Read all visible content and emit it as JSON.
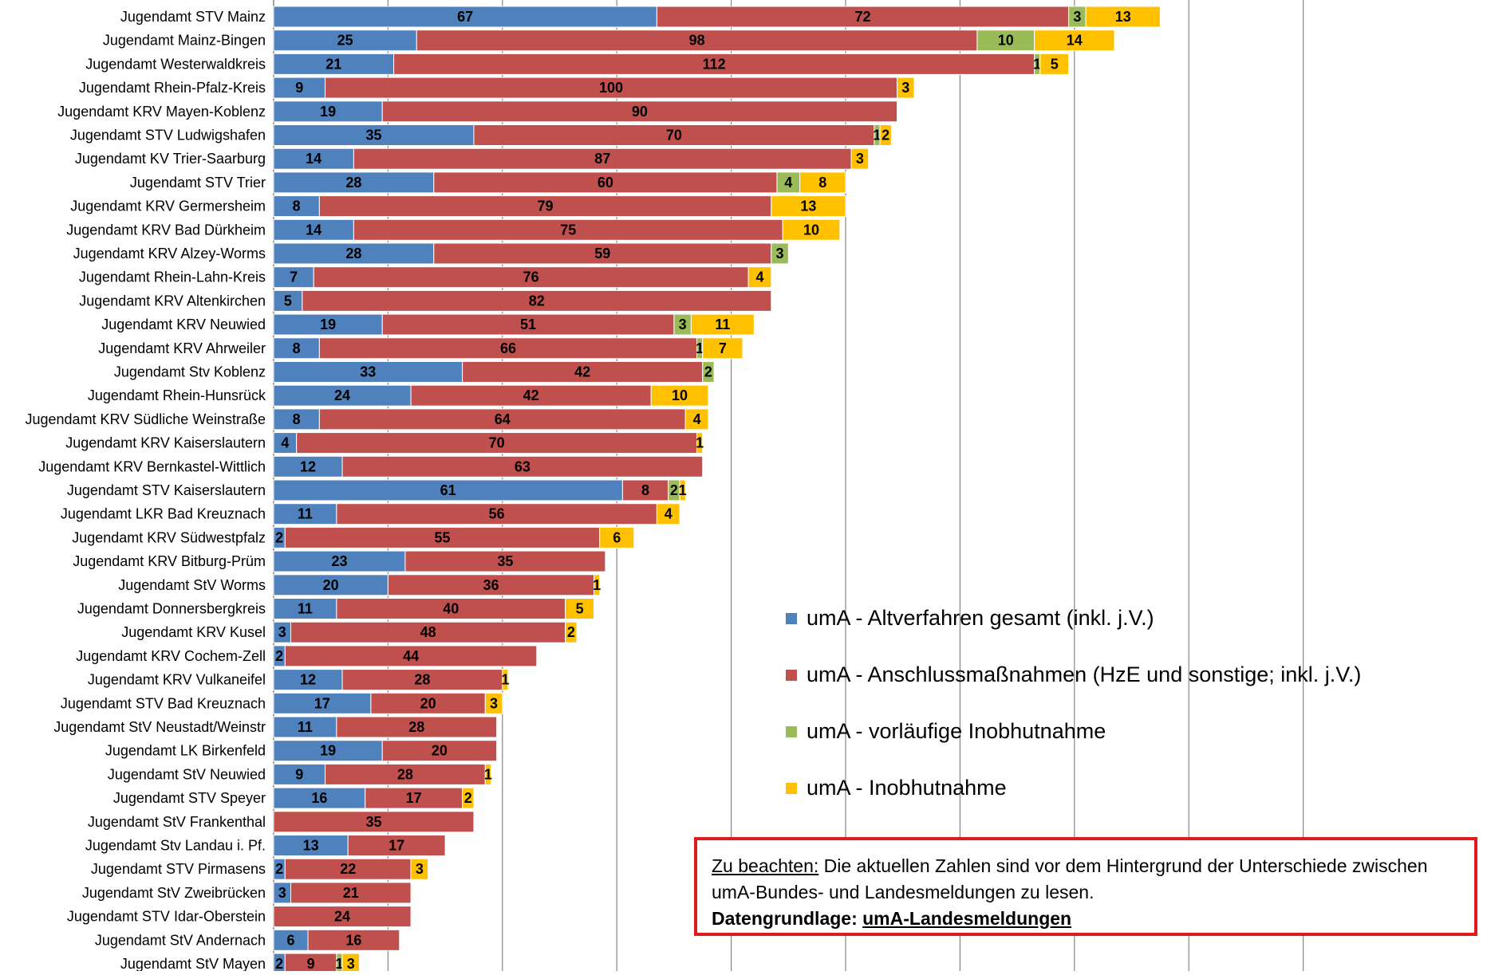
{
  "chart_data": {
    "type": "bar",
    "orientation": "horizontal",
    "stacked": true,
    "categories": [
      "Jugendamt STV Mainz",
      "Jugendamt Mainz-Bingen",
      "Jugendamt Westerwaldkreis",
      "Jugendamt Rhein-Pfalz-Kreis",
      "Jugendamt KRV Mayen-Koblenz",
      "Jugendamt STV Ludwigshafen",
      "Jugendamt KV Trier-Saarburg",
      "Jugendamt STV Trier",
      "Jugendamt KRV Germersheim",
      "Jugendamt KRV Bad Dürkheim",
      "Jugendamt KRV Alzey-Worms",
      "Jugendamt Rhein-Lahn-Kreis",
      "Jugendamt KRV Altenkirchen",
      "Jugendamt KRV Neuwied",
      "Jugendamt KRV Ahrweiler",
      "Jugendamt Stv Koblenz",
      "Jugendamt Rhein-Hunsrück",
      "Jugendamt KRV Südliche Weinstraße",
      "Jugendamt KRV Kaiserslautern",
      "Jugendamt KRV Bernkastel-Wittlich",
      "Jugendamt STV Kaiserslautern",
      "Jugendamt LKR Bad Kreuznach",
      "Jugendamt KRV Südwestpfalz",
      "Jugendamt KRV Bitburg-Prüm",
      "Jugendamt StV Worms",
      "Jugendamt Donnersbergkreis",
      "Jugendamt KRV Kusel",
      "Jugendamt KRV Cochem-Zell",
      "Jugendamt KRV Vulkaneifel",
      "Jugendamt STV Bad Kreuznach",
      "Jugendamt StV Neustadt/Weinstr",
      "Jugendamt LK Birkenfeld",
      "Jugendamt StV Neuwied",
      "Jugendamt STV Speyer",
      "Jugendamt StV Frankenthal",
      "Jugendamt Stv Landau i. Pf.",
      "Jugendamt STV Pirmasens",
      "Jugendamt StV Zweibrücken",
      "Jugendamt STV Idar-Oberstein",
      "Jugendamt StV Andernach",
      "Jugendamt StV Mayen"
    ],
    "series": [
      {
        "name": "umA - Altverfahren gesamt (inkl. j.V.)",
        "color": "#4f81bd",
        "values": [
          67,
          25,
          21,
          9,
          19,
          35,
          14,
          28,
          8,
          14,
          28,
          7,
          5,
          19,
          8,
          33,
          24,
          8,
          4,
          12,
          61,
          11,
          2,
          23,
          20,
          11,
          3,
          2,
          12,
          17,
          11,
          19,
          9,
          16,
          0,
          13,
          2,
          3,
          0,
          6,
          2
        ]
      },
      {
        "name": "umA - Anschlussmaßnahmen (HzE und sonstige; inkl. j.V.)",
        "color": "#c0504d",
        "values": [
          72,
          98,
          112,
          100,
          90,
          70,
          87,
          60,
          79,
          75,
          59,
          76,
          82,
          51,
          66,
          42,
          42,
          64,
          70,
          63,
          8,
          56,
          55,
          35,
          36,
          40,
          48,
          44,
          28,
          20,
          28,
          20,
          28,
          17,
          35,
          17,
          22,
          21,
          24,
          16,
          9
        ]
      },
      {
        "name": "umA - vorläufige Inobhutnahme",
        "color": "#9bbb59",
        "values": [
          3,
          10,
          1,
          0,
          0,
          1,
          0,
          4,
          0,
          0,
          3,
          0,
          0,
          3,
          1,
          2,
          0,
          0,
          0,
          0,
          2,
          0,
          0,
          0,
          0,
          0,
          0,
          0,
          0,
          0,
          0,
          0,
          0,
          0,
          0,
          0,
          0,
          0,
          0,
          0,
          1
        ]
      },
      {
        "name": "umA - Inobhutnahme",
        "color": "#ffc000",
        "values": [
          13,
          14,
          5,
          3,
          0,
          2,
          3,
          8,
          13,
          10,
          0,
          4,
          0,
          11,
          7,
          0,
          10,
          4,
          1,
          0,
          1,
          4,
          6,
          0,
          1,
          5,
          2,
          0,
          1,
          3,
          0,
          0,
          1,
          2,
          0,
          0,
          3,
          0,
          0,
          0,
          3
        ]
      }
    ],
    "xlim": [
      0,
      180
    ],
    "gridlines": "vertical",
    "legend_position": "right",
    "data_labels": true,
    "title": "",
    "xlabel": "",
    "ylabel": ""
  },
  "note": {
    "prefix": "Zu beachten:",
    "text": " Die aktuellen Zahlen sind vor dem Hintergrund der Unterschiede zwischen umA-Bundes- und Landesmeldungen zu lesen.",
    "source_label": "Datengrundlage: ",
    "source_value": "umA-Landesmeldungen",
    "border_color": "#e31a1c"
  }
}
